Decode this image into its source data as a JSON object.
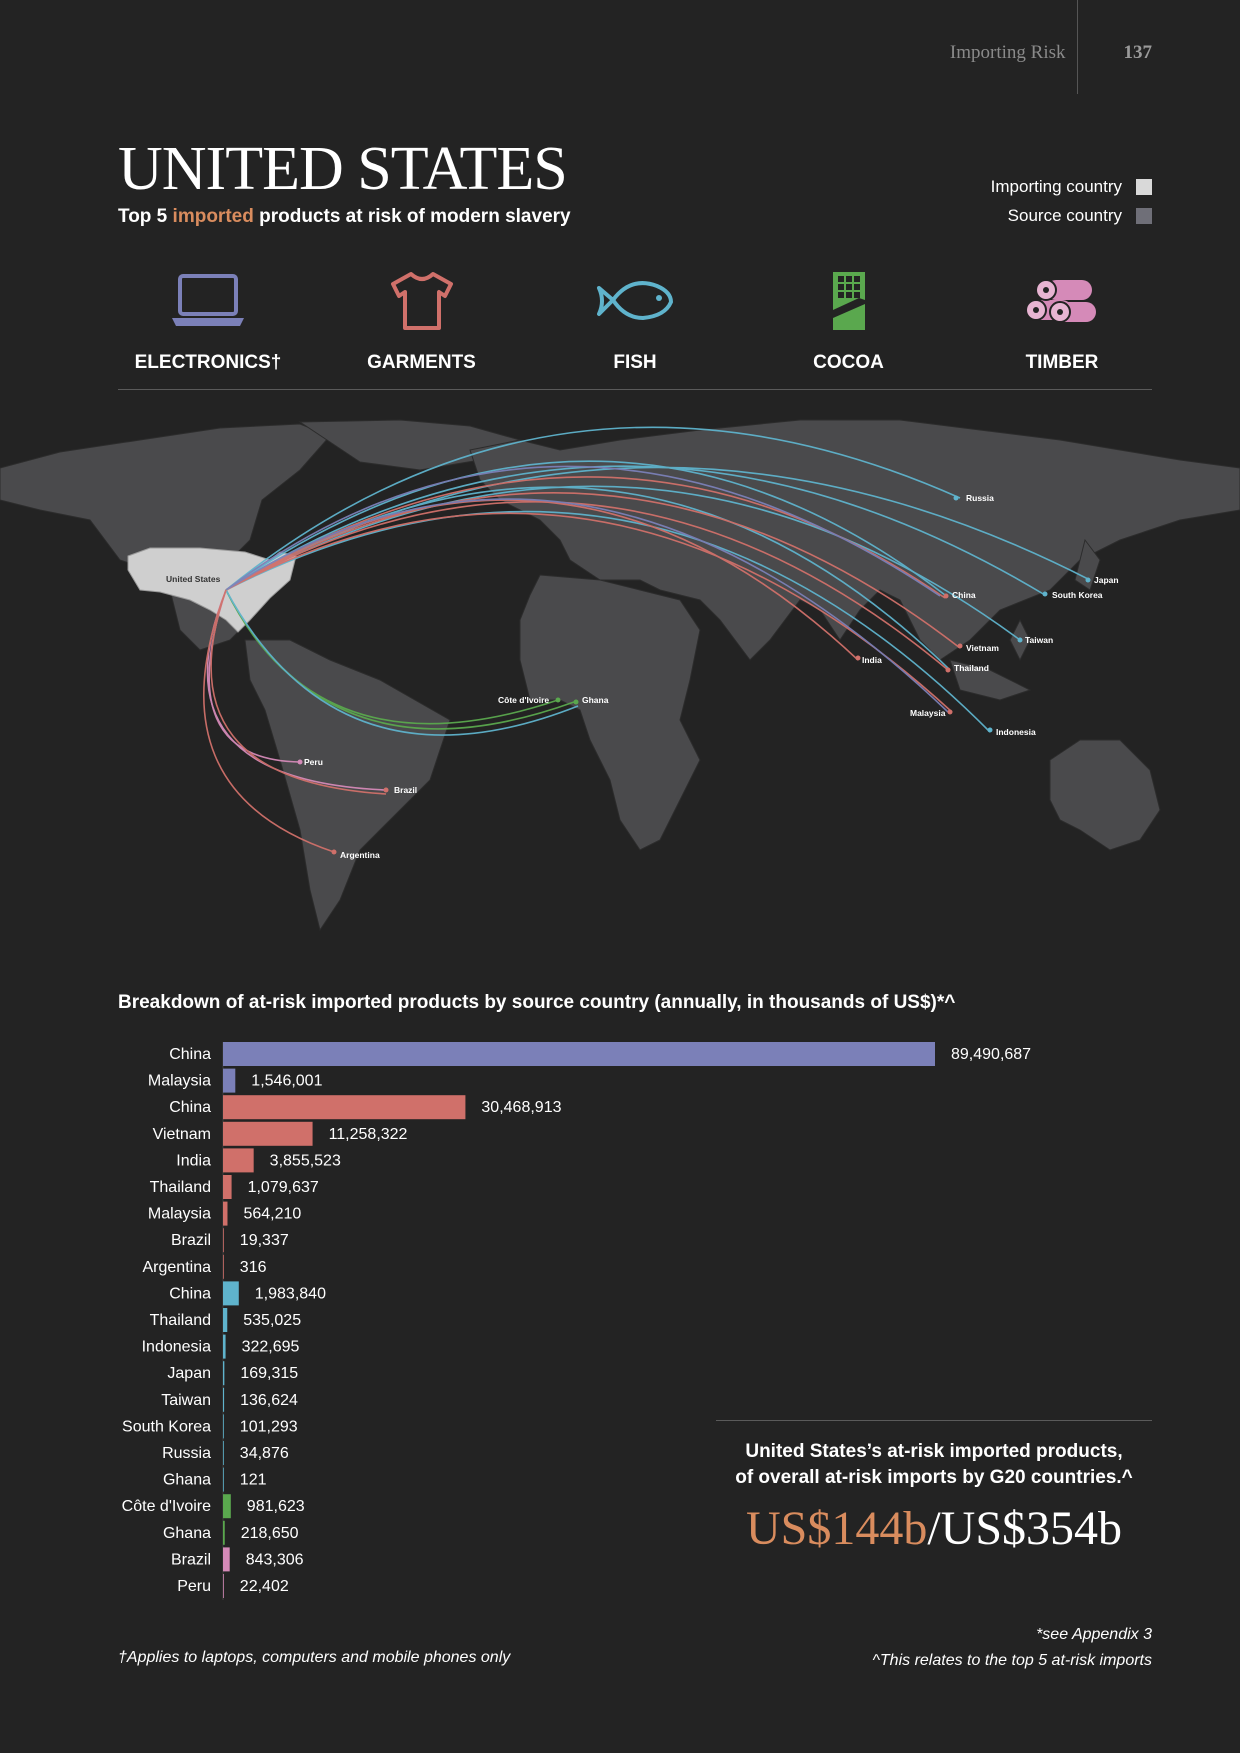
{
  "header": {
    "section": "Importing Risk",
    "page": "137"
  },
  "title": "UNITED STATES",
  "subtitle": {
    "pre": "Top 5 ",
    "highlight": "imported",
    "post": " products at risk of modern slavery"
  },
  "legend": [
    {
      "label": "Importing country",
      "color": "#d9d9d9"
    },
    {
      "label": "Source country",
      "color": "#6f6f78"
    }
  ],
  "products": [
    {
      "label": "ELECTRONICS†",
      "icon": "laptop-icon",
      "color": "#7b80b8"
    },
    {
      "label": "GARMENTS",
      "icon": "tshirt-icon",
      "color": "#d0706a"
    },
    {
      "label": "FISH",
      "icon": "fish-icon",
      "color": "#5fb3cc"
    },
    {
      "label": "COCOA",
      "icon": "chocolate-icon",
      "color": "#5aa84e"
    },
    {
      "label": "TIMBER",
      "icon": "logs-icon",
      "color": "#d58ab8"
    }
  ],
  "map": {
    "importer": "United States",
    "sources": [
      "Russia",
      "China",
      "Japan",
      "South Korea",
      "Taiwan",
      "Vietnam",
      "Thailand",
      "India",
      "Malaysia",
      "Indonesia",
      "Côte d'Ivoire",
      "Ghana",
      "Peru",
      "Brazil",
      "Argentina"
    ]
  },
  "chart_title": "Breakdown of at-risk imported products by source country (annually, in thousands of US$)*^",
  "chart_data": {
    "type": "bar",
    "orientation": "horizontal",
    "title": "Breakdown of at-risk imported products by source country (annually, in thousands of US$)*^",
    "categories": [
      "China",
      "Malaysia",
      "China",
      "Vietnam",
      "India",
      "Thailand",
      "Malaysia",
      "Brazil",
      "Argentina",
      "China",
      "Thailand",
      "Indonesia",
      "Japan",
      "Taiwan",
      "South Korea",
      "Russia",
      "Ghana",
      "Côte d'Ivoire",
      "Ghana",
      "Brazil",
      "Peru"
    ],
    "values": [
      89490687,
      1546001,
      30468913,
      11258322,
      3855523,
      1079637,
      564210,
      19337,
      316,
      1983840,
      535025,
      322695,
      169315,
      136624,
      101293,
      34876,
      121,
      981623,
      218650,
      843306,
      22402
    ],
    "labels": [
      "89,490,687",
      "1,546,001",
      "30,468,913",
      "11,258,322",
      "3,855,523",
      "1,079,637",
      "564,210",
      "19,337",
      "316",
      "1,983,840",
      "535,025",
      "322,695",
      "169,315",
      "136,624",
      "101,293",
      "34,876",
      "121",
      "981,623",
      "218,650",
      "843,306",
      "22,402"
    ],
    "colors": [
      "#7b80b8",
      "#7b80b8",
      "#d0706a",
      "#d0706a",
      "#d0706a",
      "#d0706a",
      "#d0706a",
      "#d0706a",
      "#d0706a",
      "#5fb3cc",
      "#5fb3cc",
      "#5fb3cc",
      "#5fb3cc",
      "#5fb3cc",
      "#5fb3cc",
      "#5fb3cc",
      "#5fb3cc",
      "#5aa84e",
      "#5aa84e",
      "#d58ab8",
      "#d58ab8"
    ],
    "xlim": [
      0,
      89490687
    ]
  },
  "summary": {
    "line1": "United States’s at-risk imported products,",
    "line2": "of overall at-risk imports by G20 countries.^",
    "amount": "US$144b",
    "total": "/US$354b"
  },
  "footnotes": {
    "left": "†Applies to laptops, computers and mobile phones only",
    "right1": "*see Appendix 3",
    "right2": "^This relates to the top 5 at-risk imports"
  }
}
